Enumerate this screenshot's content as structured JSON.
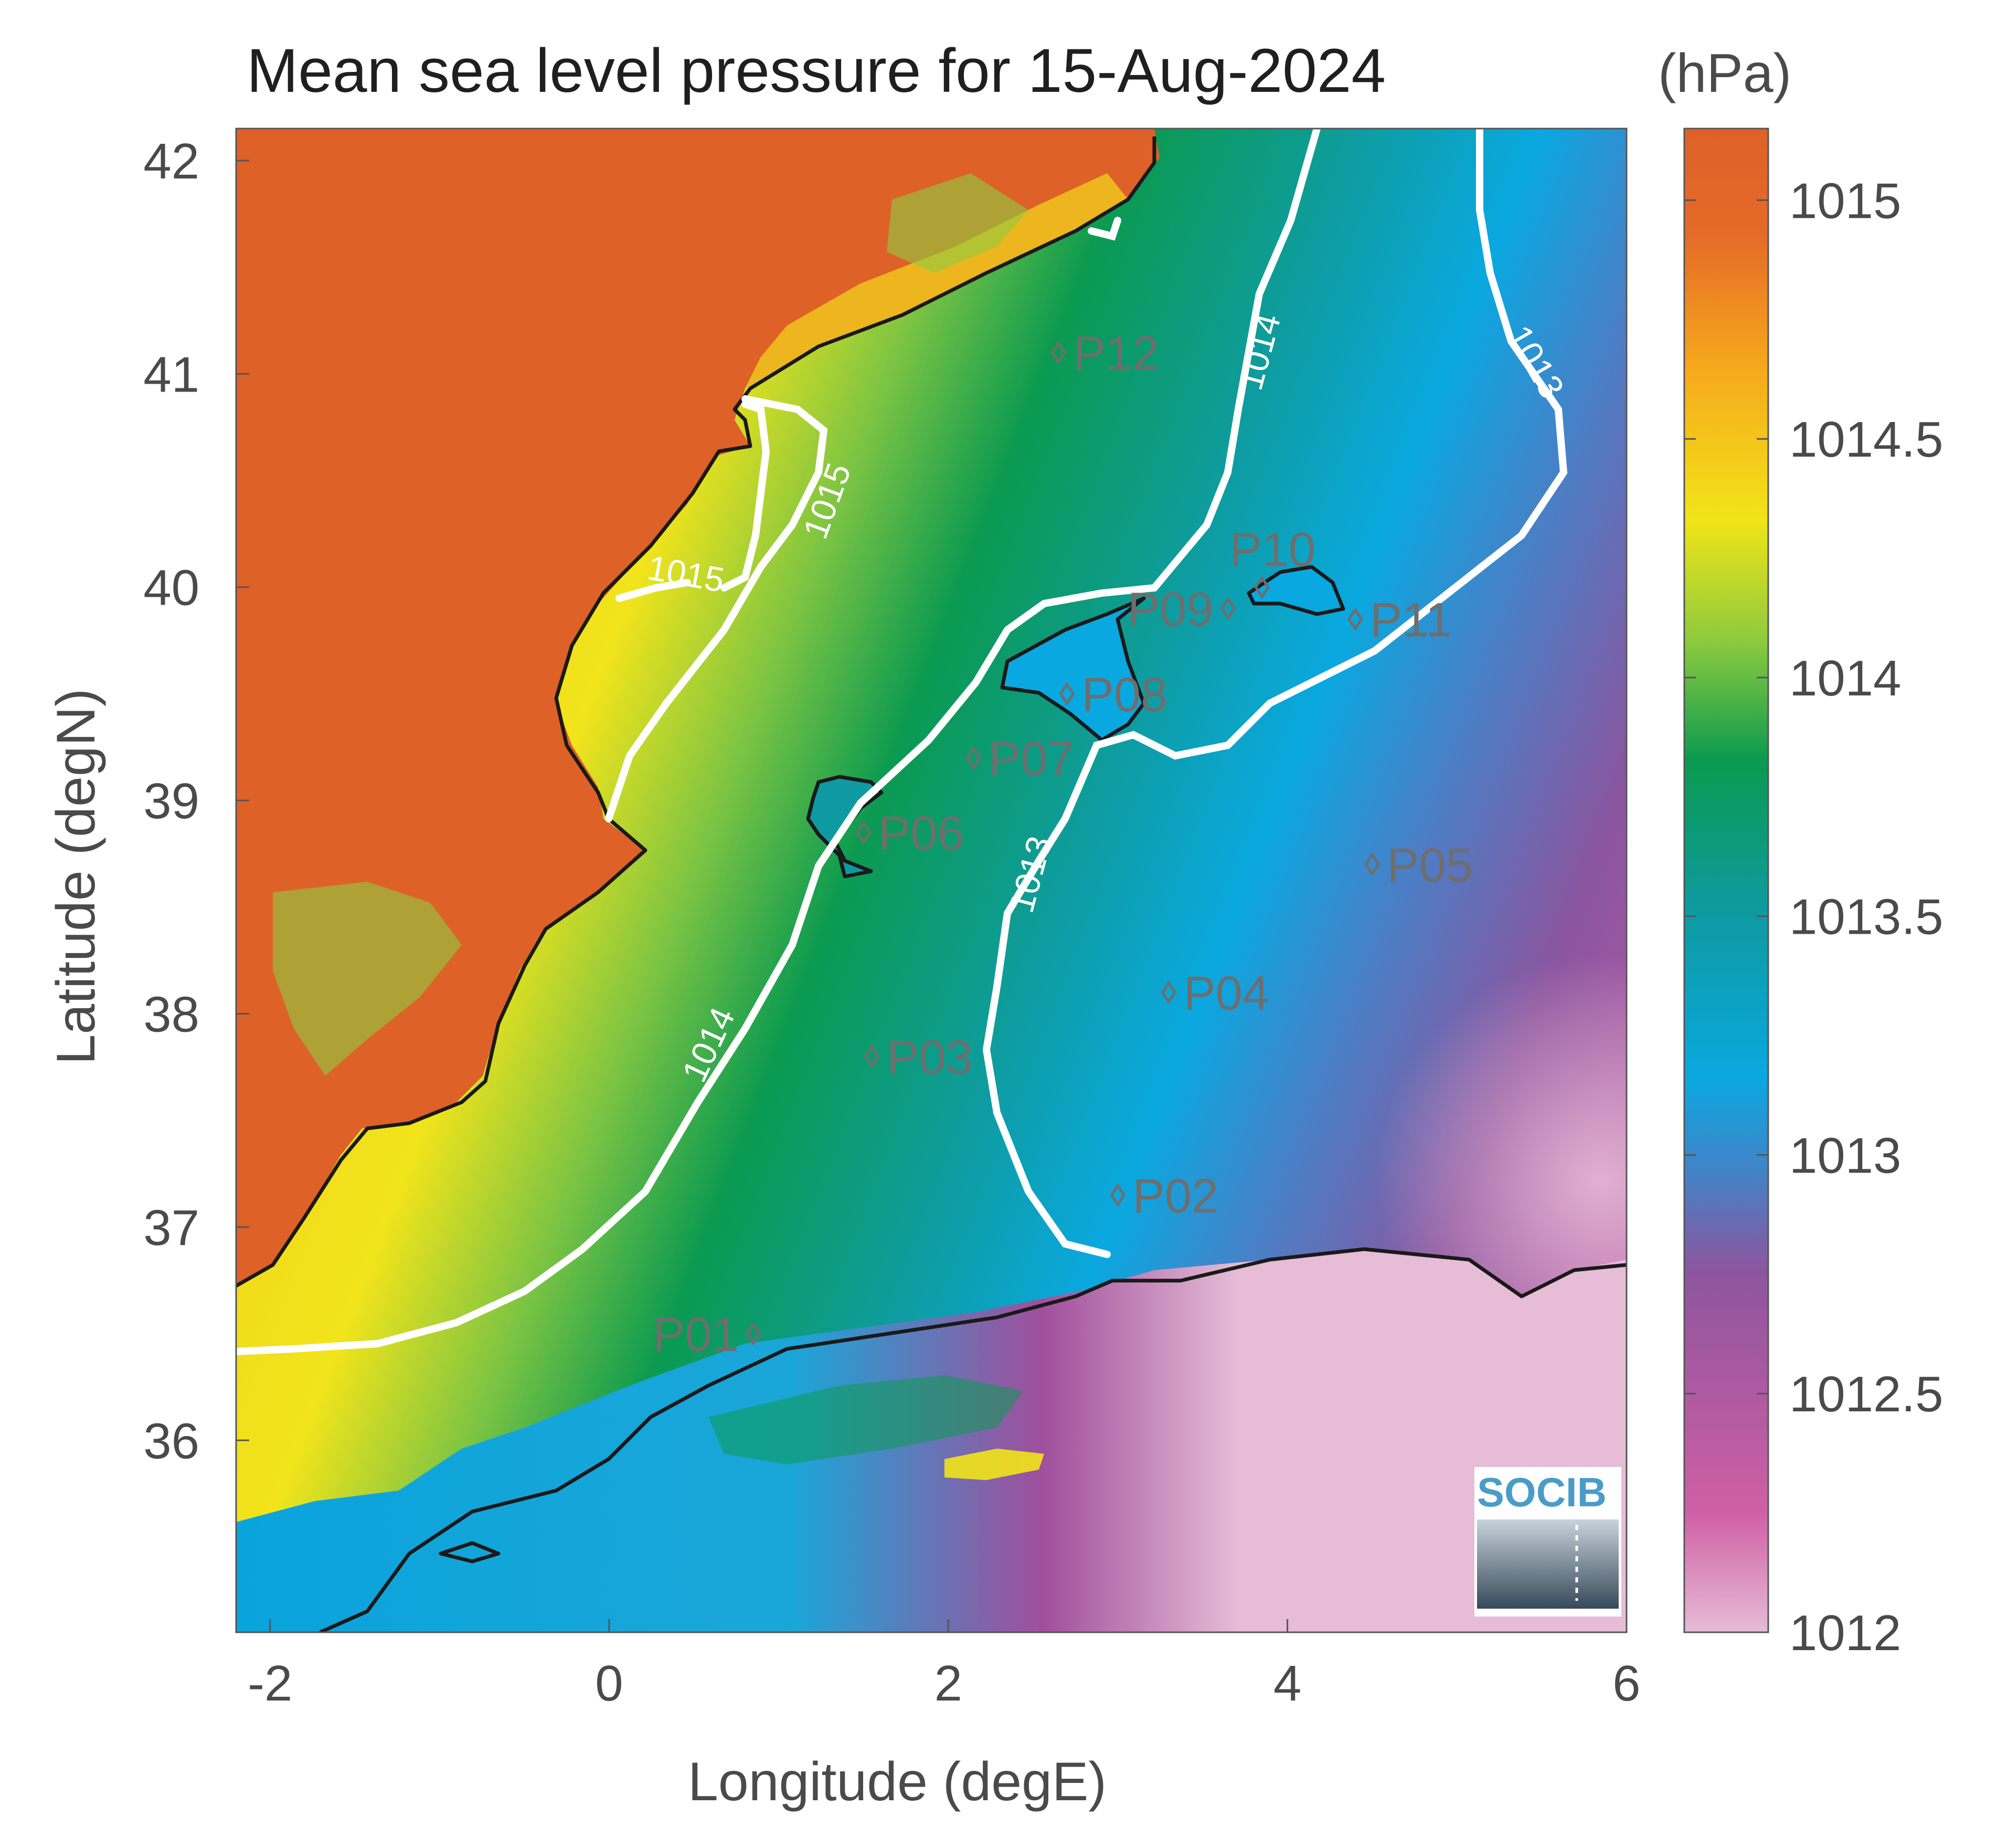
{
  "title": "Mean sea level pressure for 15-Aug-2024",
  "colorbar": {
    "unit": "(hPa)",
    "range": [
      1012,
      1015.15
    ],
    "ticks": [
      1012,
      1012.5,
      1013,
      1013.5,
      1014,
      1014.5,
      1015
    ],
    "tick_labels": [
      "1012",
      "1012.5",
      "1013",
      "1013.5",
      "1014",
      "1014.5",
      "1015"
    ],
    "colors": [
      "#e6bcd6",
      "#cf5fa5",
      "#8d559e",
      "#3f85c9",
      "#0aa8e0",
      "#0e9aa0",
      "#0b9a50",
      "#8ecb3d",
      "#f2e418",
      "#f6a91c",
      "#e56a28"
    ]
  },
  "map": {
    "xlabel": "Longitude (degE)",
    "ylabel": "Latitude (degN)",
    "xlim": [
      -2.2,
      6
    ],
    "ylim": [
      35.1,
      42.15
    ],
    "x_ticks": [
      -2,
      0,
      2,
      4,
      6
    ],
    "x_tick_labels": [
      "-2",
      "0",
      "2",
      "4",
      "6"
    ],
    "y_ticks": [
      36,
      37,
      38,
      39,
      40,
      41,
      42
    ],
    "y_tick_labels": [
      "36",
      "37",
      "38",
      "39",
      "40",
      "41",
      "42"
    ],
    "contours": [
      {
        "level": 1015,
        "labels": [
          {
            "text": "1015",
            "lon": 0.45,
            "lat": 40.05,
            "angle": 10
          },
          {
            "text": "1015",
            "lon": 1.3,
            "lat": 40.4,
            "angle": -70
          }
        ]
      },
      {
        "level": 1014,
        "labels": [
          {
            "text": "1014",
            "lon": 0.6,
            "lat": 37.85,
            "angle": -65
          },
          {
            "text": "1014",
            "lon": 3.85,
            "lat": 41.1,
            "angle": -75
          }
        ]
      },
      {
        "level": 1013,
        "labels": [
          {
            "text": "1013",
            "lon": 2.5,
            "lat": 38.65,
            "angle": -75
          },
          {
            "text": "1013",
            "lon": 5.45,
            "lat": 41.05,
            "angle": 60
          }
        ]
      }
    ]
  },
  "stations": [
    {
      "id": "P01",
      "lon": 0.85,
      "lat": 36.5,
      "label_side": "left"
    },
    {
      "id": "P02",
      "lon": 3.0,
      "lat": 37.15,
      "label_side": "right"
    },
    {
      "id": "P03",
      "lon": 1.55,
      "lat": 37.8,
      "label_side": "right"
    },
    {
      "id": "P04",
      "lon": 3.3,
      "lat": 38.1,
      "label_side": "right"
    },
    {
      "id": "P05",
      "lon": 4.5,
      "lat": 38.7,
      "label_side": "right"
    },
    {
      "id": "P06",
      "lon": 1.5,
      "lat": 38.85,
      "label_side": "right"
    },
    {
      "id": "P07",
      "lon": 2.15,
      "lat": 39.2,
      "label_side": "right"
    },
    {
      "id": "P08",
      "lon": 2.7,
      "lat": 39.5,
      "label_side": "right"
    },
    {
      "id": "P09",
      "lon": 3.65,
      "lat": 39.9,
      "label_side": "left"
    },
    {
      "id": "P10",
      "lon": 3.85,
      "lat": 40.0,
      "label_side": "above"
    },
    {
      "id": "P11",
      "lon": 4.4,
      "lat": 39.85,
      "label_side": "right"
    },
    {
      "id": "P12",
      "lon": 2.65,
      "lat": 41.1,
      "label_side": "right"
    }
  ],
  "logo": {
    "text": "SOCIB"
  }
}
